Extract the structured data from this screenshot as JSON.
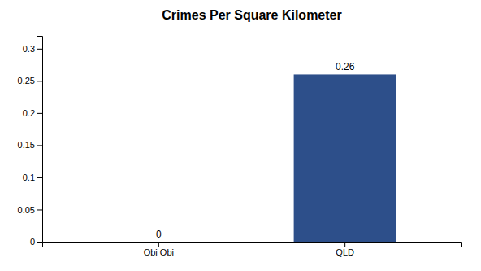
{
  "chart_data": {
    "type": "bar",
    "title": "Crimes Per Square Kilometer",
    "categories": [
      "Obi Obi",
      "QLD"
    ],
    "values": [
      0,
      0.26
    ],
    "color": "#2d4f8a",
    "ylim": [
      0,
      0.32
    ],
    "yticks": [
      0,
      0.05,
      0.1,
      0.15,
      0.2,
      0.25,
      0.3
    ],
    "grid": false,
    "data_labels": true
  }
}
